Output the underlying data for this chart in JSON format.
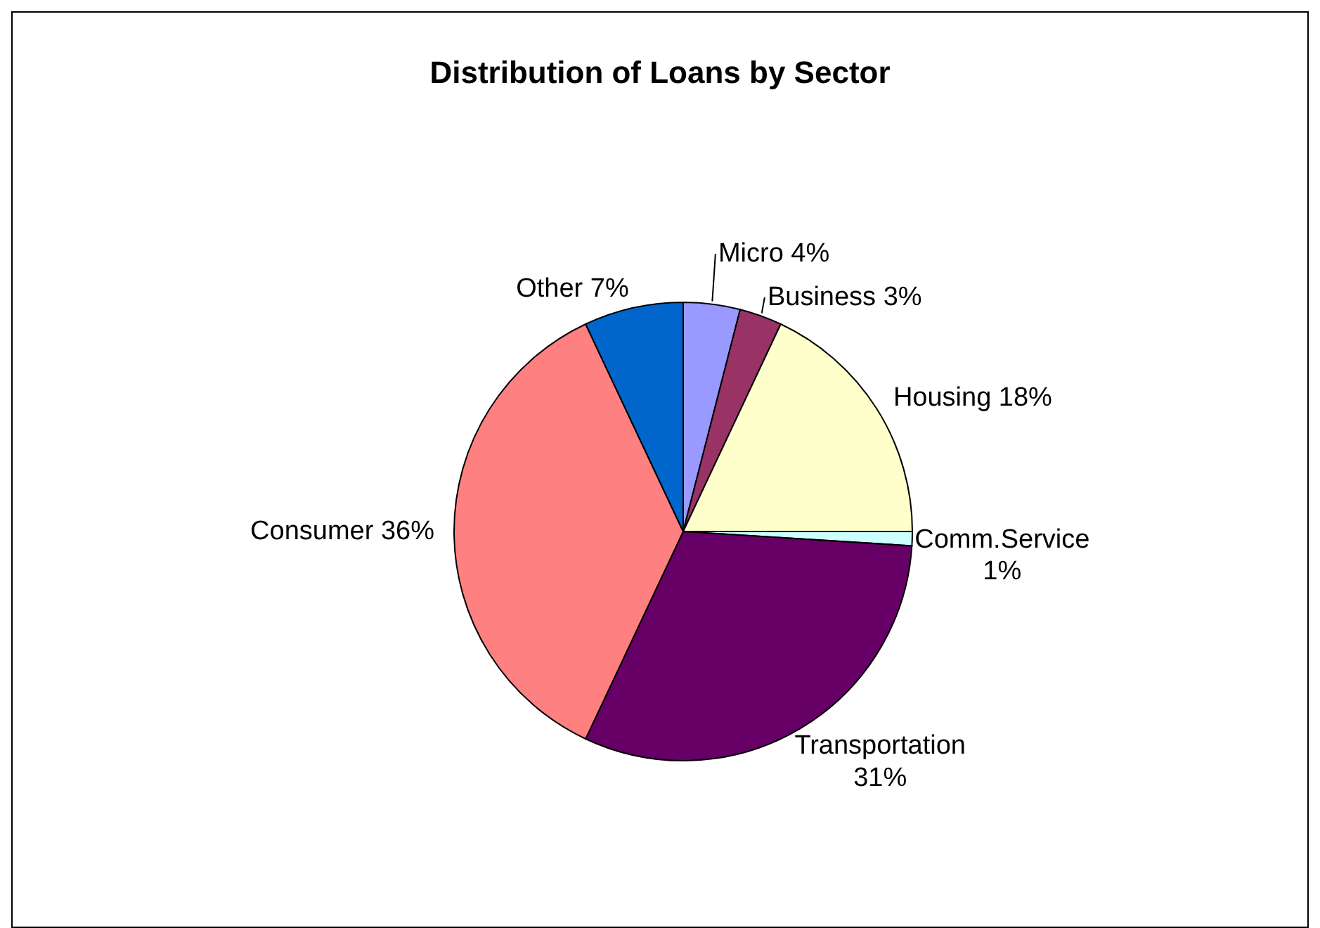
{
  "chart_data": {
    "type": "pie",
    "title": "Distribution of Loans by Sector",
    "categories": [
      "Micro",
      "Business",
      "Housing",
      "Comm.Service",
      "Transportation",
      "Consumer",
      "Other"
    ],
    "values": [
      4,
      3,
      18,
      1,
      31,
      36,
      7
    ],
    "value_labels": [
      "4%",
      "3%",
      "18%",
      "1%",
      "31%",
      "36%",
      "7%"
    ],
    "colors": [
      "#9999ff",
      "#993366",
      "#ffffcc",
      "#ccffff",
      "#660066",
      "#ff8080",
      "#0066cc"
    ],
    "legend": false
  }
}
